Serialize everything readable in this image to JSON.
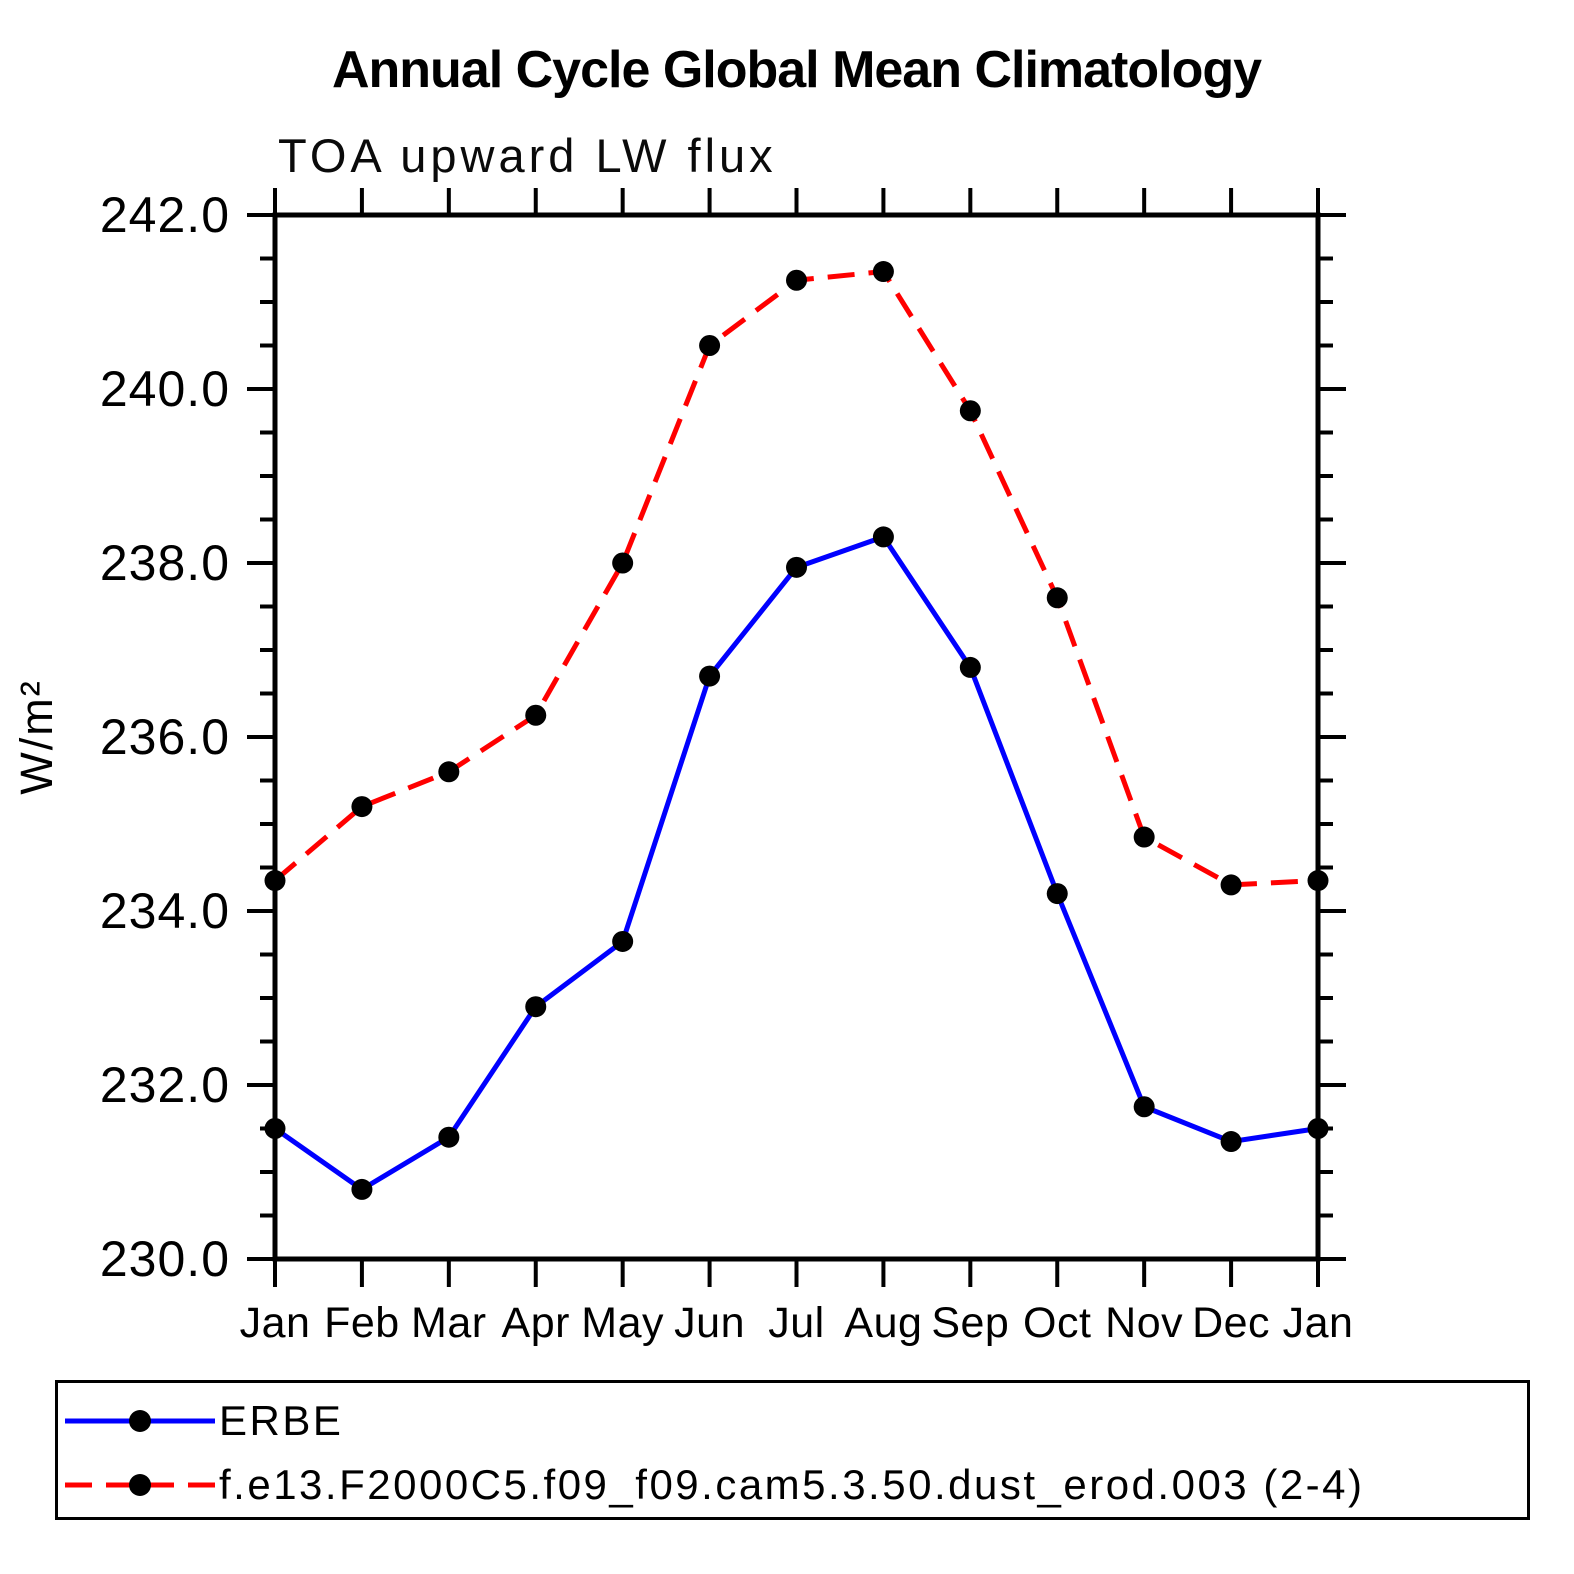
{
  "header": {
    "title": "Annual Cycle Global Mean Climatology",
    "subtitle": "TOA upward LW flux"
  },
  "chart_data": {
    "type": "line",
    "categories": [
      "Jan",
      "Feb",
      "Mar",
      "Apr",
      "May",
      "Jun",
      "Jul",
      "Aug",
      "Sep",
      "Oct",
      "Nov",
      "Dec",
      "Jan"
    ],
    "series": [
      {
        "name": "ERBE",
        "color": "#0000FF",
        "line_style": "solid",
        "marker": "circle",
        "marker_color": "#000000",
        "values": [
          231.5,
          230.8,
          231.4,
          232.9,
          233.65,
          236.7,
          237.95,
          238.3,
          236.8,
          234.2,
          231.75,
          231.35,
          231.5
        ]
      },
      {
        "name": "f.e13.F2000C5.f09_f09.cam5.3.50.dust_erod.003 (2-4)",
        "color": "#FF0000",
        "line_style": "dashed",
        "marker": "circle",
        "marker_color": "#000000",
        "values": [
          234.35,
          235.2,
          235.6,
          236.25,
          238.0,
          240.5,
          241.25,
          241.35,
          239.75,
          237.6,
          234.85,
          234.3,
          234.35
        ]
      }
    ],
    "xlabel": "",
    "ylabel": "W/m²",
    "ylim": [
      230.0,
      242.0
    ],
    "ytick_major_step": 2.0,
    "ytick_minor_step": 0.5,
    "ytick_labels": [
      "230.0",
      "232.0",
      "234.0",
      "236.0",
      "238.0",
      "240.0",
      "242.0"
    ],
    "grid": false,
    "legend_position": "bottom"
  }
}
